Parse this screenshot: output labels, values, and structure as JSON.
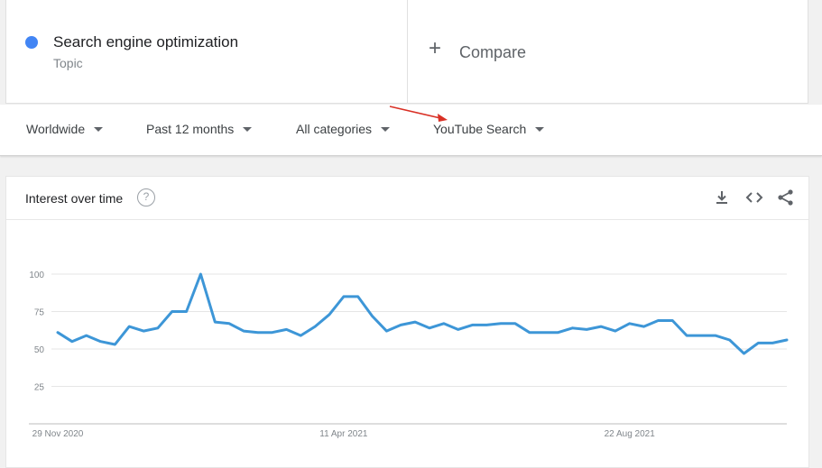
{
  "term": {
    "name": "Search engine optimization",
    "type": "Topic"
  },
  "compare": {
    "label": "Compare"
  },
  "filters": [
    {
      "label": "Worldwide"
    },
    {
      "label": "Past 12 months"
    },
    {
      "label": "All categories"
    },
    {
      "label": "YouTube Search"
    }
  ],
  "card": {
    "title": "Interest over time"
  },
  "colors": {
    "series": "#4285f4",
    "line": "#3d96d7",
    "arrow": "#d93025"
  },
  "chart_data": {
    "type": "line",
    "title": "",
    "ylim": [
      0,
      100
    ],
    "yticks": [
      25,
      50,
      75,
      100
    ],
    "x_labels": [
      "29 Nov 2020",
      "11 Apr 2021",
      "22 Aug 2021"
    ],
    "x_label_index": [
      0,
      20,
      40
    ],
    "grid": true,
    "series": [
      {
        "values": [
          61,
          55,
          59,
          55,
          53,
          65,
          62,
          64,
          75,
          75,
          100,
          68,
          67,
          62,
          61,
          61,
          63,
          59,
          65,
          73,
          85,
          85,
          72,
          62,
          66,
          68,
          64,
          67,
          63,
          66,
          66,
          67,
          67,
          61,
          61,
          61,
          64,
          63,
          65,
          62,
          67,
          65,
          69,
          69,
          59,
          59,
          59,
          56,
          47,
          54,
          54,
          56
        ]
      }
    ]
  }
}
